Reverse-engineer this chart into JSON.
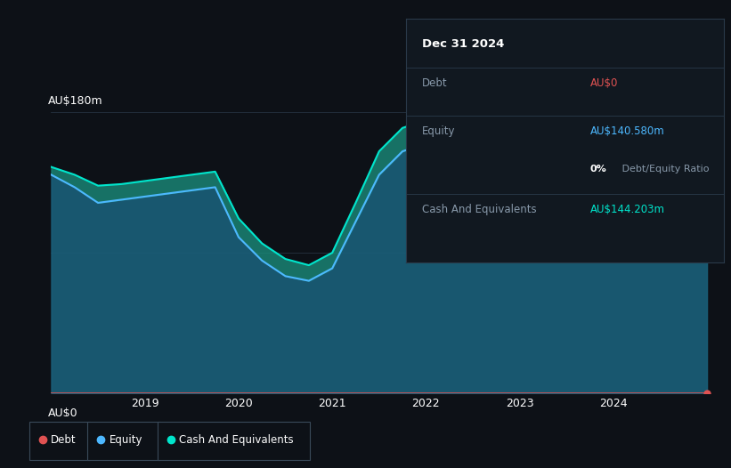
{
  "background_color": "#0d1117",
  "plot_bg_color": "#0d1117",
  "title_box": {
    "date": "Dec 31 2024",
    "debt_label": "Debt",
    "debt_value": "AU$0",
    "debt_color": "#e05252",
    "equity_label": "Equity",
    "equity_value": "AU$140.580m",
    "equity_color": "#4db8ff",
    "cash_label": "Cash And Equivalents",
    "cash_value": "AU$144.203m",
    "cash_color": "#00e5cc",
    "box_bg": "#111820",
    "box_border": "#2a3a4a"
  },
  "ylabel_top": "AU$180m",
  "ylabel_bottom": "AU$0",
  "x_ticks": [
    2019,
    2020,
    2021,
    2022,
    2023,
    2024
  ],
  "equity_color": "#4db8ff",
  "cash_color": "#00e5cc",
  "debt_color": "#e05252",
  "legend": [
    {
      "label": "Debt",
      "color": "#e05252"
    },
    {
      "label": "Equity",
      "color": "#4db8ff"
    },
    {
      "label": "Cash And Equivalents",
      "color": "#00e5cc"
    }
  ],
  "time_points": [
    2018.0,
    2018.25,
    2018.5,
    2018.75,
    2019.0,
    2019.25,
    2019.5,
    2019.75,
    2020.0,
    2020.25,
    2020.5,
    2020.75,
    2021.0,
    2021.25,
    2021.5,
    2021.75,
    2022.0,
    2022.25,
    2022.5,
    2022.75,
    2023.0,
    2023.25,
    2023.5,
    2023.75,
    2024.0,
    2024.25,
    2024.5,
    2024.75,
    2025.0
  ],
  "equity_values": [
    140,
    132,
    122,
    124,
    126,
    128,
    130,
    132,
    100,
    85,
    75,
    72,
    80,
    110,
    140,
    155,
    160,
    155,
    140,
    115,
    110,
    108,
    112,
    118,
    122,
    128,
    132,
    140,
    140.58
  ],
  "cash_values": [
    145,
    140,
    133,
    134,
    136,
    138,
    140,
    142,
    112,
    96,
    86,
    82,
    90,
    122,
    155,
    170,
    175,
    168,
    150,
    120,
    112,
    111,
    116,
    123,
    128,
    134,
    138,
    144,
    144.2
  ],
  "debt_values": [
    0,
    0,
    0,
    0,
    0,
    0,
    0,
    0,
    0,
    0,
    0,
    0,
    0,
    0,
    0,
    0,
    0,
    0,
    0,
    0,
    0,
    0,
    0,
    0,
    0,
    0,
    0,
    0,
    0
  ],
  "ymax": 180,
  "ymin": 0,
  "xmin": 2018.0,
  "xmax": 2025.1
}
